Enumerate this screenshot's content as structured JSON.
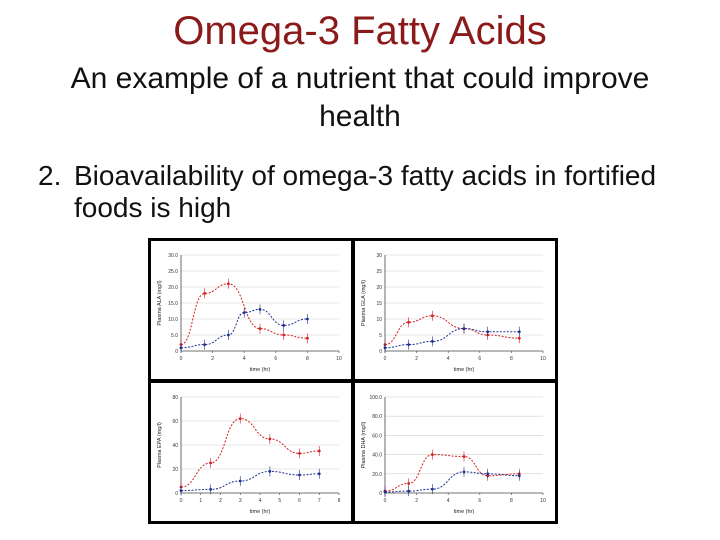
{
  "slide": {
    "title": "Omega-3 Fatty Acids",
    "subtitle": "An example of a nutrient that could improve health",
    "point_number": "2.",
    "point_text": "Bioavailability of omega-3 fatty acids in fortified foods is high"
  },
  "colors": {
    "series_red": "#d42020",
    "series_blue": "#1f2f8f",
    "title": "#8b1a1a"
  },
  "chart_data": [
    {
      "type": "line",
      "ylabel": "Plasma ALA (mg/l)",
      "xlabel": "time (hr)",
      "xlim": [
        0,
        10
      ],
      "ylim": [
        0,
        30
      ],
      "xticks": [
        "0",
        "2",
        "4",
        "6",
        "8",
        "10"
      ],
      "yticks": [
        "0",
        "5.0",
        "10.0",
        "15.0",
        "20.0",
        "25.0",
        "30.0"
      ],
      "series": [
        {
          "x": [
            0,
            1.5,
            3,
            5,
            6.5,
            8
          ],
          "y": [
            2,
            18,
            21,
            7,
            5,
            4
          ]
        },
        {
          "x": [
            0,
            1.5,
            3,
            4,
            5,
            6.5,
            8
          ],
          "y": [
            1,
            2,
            5,
            12,
            13,
            8,
            10
          ]
        }
      ]
    },
    {
      "type": "line",
      "ylabel": "Plasma GLA (mg/l)",
      "xlabel": "time (hr)",
      "xlim": [
        0,
        10
      ],
      "ylim": [
        0,
        30
      ],
      "xticks": [
        "0",
        "2",
        "4",
        "6",
        "8",
        "10"
      ],
      "yticks": [
        "0",
        "5",
        "10",
        "15",
        "20",
        "25",
        "30"
      ],
      "series": [
        {
          "x": [
            0,
            1.5,
            3,
            5,
            6.5,
            8.5
          ],
          "y": [
            2,
            9,
            11,
            7,
            5,
            4
          ]
        },
        {
          "x": [
            0,
            1.5,
            3,
            5,
            6.5,
            8.5
          ],
          "y": [
            1,
            2,
            3,
            7,
            6,
            6
          ]
        }
      ]
    },
    {
      "type": "line",
      "ylabel": "Plasma EPA (mg/l)",
      "xlabel": "time (hr)",
      "xlim": [
        0,
        8
      ],
      "ylim": [
        0,
        80
      ],
      "xticks": [
        "0",
        "1",
        "2",
        "3",
        "4",
        "5",
        "6",
        "7",
        "8"
      ],
      "yticks": [
        "0",
        "20",
        "40",
        "60",
        "80"
      ],
      "series": [
        {
          "x": [
            0,
            1.5,
            3,
            4.5,
            6,
            7
          ],
          "y": [
            5,
            25,
            62,
            45,
            33,
            35
          ]
        },
        {
          "x": [
            0,
            1.5,
            3,
            4.5,
            6,
            7
          ],
          "y": [
            2,
            3,
            10,
            18,
            15,
            16
          ]
        }
      ]
    },
    {
      "type": "line",
      "ylabel": "Plasma DHA (mg/l)",
      "xlabel": "time (hr)",
      "xlim": [
        0,
        10
      ],
      "ylim": [
        0,
        100
      ],
      "xticks": [
        "0",
        "2",
        "4",
        "6",
        "8",
        "10"
      ],
      "yticks": [
        "0",
        "20.0",
        "40.0",
        "60.0",
        "80.0",
        "100.0"
      ],
      "series": [
        {
          "x": [
            0,
            1.5,
            3,
            5,
            6.5,
            8.5
          ],
          "y": [
            2,
            10,
            40,
            38,
            18,
            20
          ]
        },
        {
          "x": [
            0,
            1.5,
            3,
            5,
            6.5,
            8.5
          ],
          "y": [
            1,
            2,
            4,
            22,
            20,
            18
          ]
        }
      ]
    }
  ]
}
